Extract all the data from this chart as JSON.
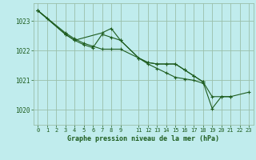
{
  "background_color": "#c0eced",
  "grid_color": "#9abfaa",
  "line_color": "#1e5c1e",
  "title": "Graphe pression niveau de la mer (hPa)",
  "xlim": [
    -0.5,
    23.5
  ],
  "ylim": [
    1019.5,
    1023.6
  ],
  "yticks": [
    1020,
    1021,
    1022,
    1023
  ],
  "xticks": [
    0,
    1,
    2,
    3,
    4,
    5,
    6,
    7,
    8,
    9,
    11,
    12,
    13,
    14,
    15,
    16,
    17,
    18,
    19,
    20,
    21,
    22,
    23
  ],
  "line1_x": [
    0,
    1
  ],
  "line1_y": [
    1023.35,
    1023.1
  ],
  "line2_x": [
    0,
    3,
    4,
    5,
    6,
    7,
    8,
    9,
    11,
    12,
    13,
    14,
    15,
    16,
    17,
    18
  ],
  "line2_y": [
    1023.35,
    1022.6,
    1022.4,
    1022.25,
    1022.15,
    1022.05,
    1022.05,
    1022.05,
    1021.75,
    1021.55,
    1021.4,
    1021.25,
    1021.1,
    1021.05,
    1021.0,
    1020.9
  ],
  "line3_x": [
    0,
    3,
    4,
    5,
    6,
    7,
    8,
    9,
    11,
    12,
    13,
    14,
    15,
    16,
    17,
    18,
    19,
    20,
    21
  ],
  "line3_y": [
    1023.35,
    1022.55,
    1022.35,
    1022.2,
    1022.1,
    1022.55,
    1022.45,
    1022.35,
    1021.75,
    1021.6,
    1021.55,
    1021.55,
    1021.55,
    1021.35,
    1021.15,
    1020.95,
    1020.45,
    1020.45,
    1020.45
  ],
  "line4_x": [
    0,
    3,
    4,
    7,
    8,
    9,
    11,
    12,
    13,
    14,
    15,
    16,
    17,
    18,
    19,
    20,
    21,
    23
  ],
  "line4_y": [
    1023.35,
    1022.55,
    1022.35,
    1022.6,
    1022.75,
    1022.35,
    1021.75,
    1021.6,
    1021.55,
    1021.55,
    1021.55,
    1021.35,
    1021.15,
    1020.95,
    1020.05,
    1020.45,
    1020.45,
    1020.6
  ]
}
